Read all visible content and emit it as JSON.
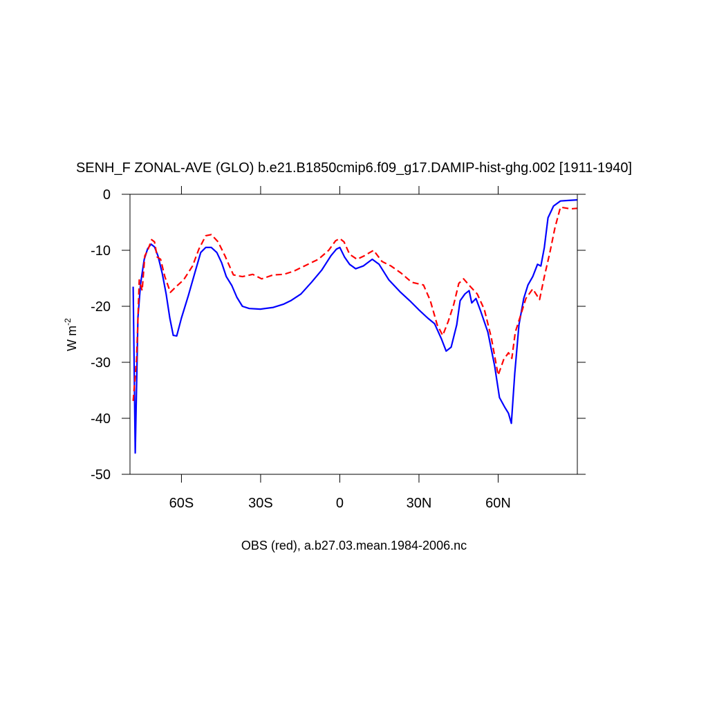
{
  "chart_data": {
    "type": "line",
    "title": "SENH_F ZONAL-AVE (GLO) b.e21.B1850cmip6.f09_g17.DAMIP-hist-ghg.002 [1911-1940]",
    "x_label": "OBS (red), a.b27.03.mean.1984-2006.nc",
    "y_label": {
      "base": "W m",
      "sup": "-2"
    },
    "xlim": [
      -79.5,
      90
    ],
    "ylim": [
      -50,
      0
    ],
    "xticks": [
      {
        "value": -60,
        "label": "60S"
      },
      {
        "value": -30,
        "label": "30S"
      },
      0,
      {
        "value": 30,
        "label": "30N"
      },
      {
        "value": 60,
        "label": "60N"
      }
    ],
    "yticks": [
      0,
      -10,
      -20,
      -30,
      -40,
      -50
    ],
    "series": [
      {
        "color": "#0000ff",
        "style": "solid",
        "x": [
          -78.3,
          -77.5,
          -76.5,
          -75.5,
          -74.1,
          -72.8,
          -71.5,
          -70.2,
          -68.9,
          -67.3,
          -65.8,
          -64.4,
          -63.1,
          -61.8,
          -60,
          -57.4,
          -54.8,
          -52.7,
          -50.8,
          -48.7,
          -46.6,
          -44.8,
          -43,
          -40.9,
          -39,
          -36.9,
          -34.3,
          -30.1,
          -25.2,
          -21.2,
          -18.6,
          -14.7,
          -10.7,
          -6.8,
          -3.4,
          -1.3,
          0,
          1.8,
          3.7,
          6,
          8.9,
          12.3,
          14.9,
          18.6,
          22.8,
          26.5,
          29.9,
          33.3,
          35.9,
          38.5,
          40.3,
          42.2,
          44.3,
          45.6,
          47.4,
          49,
          50,
          51.6,
          53.4,
          56.1,
          58.7,
          60.5,
          62.6,
          63.9,
          65,
          66.3,
          67.9,
          69.7,
          71.3,
          73.1,
          74.9,
          76.2,
          77.5,
          78.9,
          81,
          83.6,
          86.7,
          89.9
        ],
        "values": [
          -16.5,
          -46.2,
          -22,
          -16,
          -11.6,
          -9.7,
          -8.9,
          -9.4,
          -11,
          -14.1,
          -17.8,
          -22.1,
          -25.2,
          -25.3,
          -22.1,
          -18.1,
          -13.8,
          -10.4,
          -9.5,
          -9.5,
          -10.4,
          -12.2,
          -14.7,
          -16.3,
          -18.4,
          -20,
          -20.4,
          -20.5,
          -20.2,
          -19.6,
          -19,
          -17.8,
          -15.7,
          -13.5,
          -11,
          -9.8,
          -9.5,
          -11.2,
          -12.5,
          -13.3,
          -12.8,
          -11.6,
          -12.5,
          -15.3,
          -17.4,
          -19,
          -20.6,
          -22.1,
          -23.1,
          -25.8,
          -28,
          -27.3,
          -23.3,
          -19,
          -17.8,
          -17.2,
          -19.4,
          -18.6,
          -20.9,
          -24.6,
          -30.7,
          -36.3,
          -38.1,
          -39.1,
          -40.9,
          -32,
          -23.3,
          -18.6,
          -16.2,
          -14.7,
          -12.5,
          -12.8,
          -9.5,
          -4.2,
          -2.1,
          -1.2,
          -1.1,
          -1.0
        ]
      },
      {
        "color": "#ff0000",
        "style": "dashed",
        "x": [
          -78.3,
          -77,
          -76,
          -74.9,
          -73.9,
          -72.6,
          -71.3,
          -70.2,
          -69.2,
          -67.9,
          -66.3,
          -64.2,
          -61.8,
          -59.2,
          -55.8,
          -53.4,
          -50.8,
          -48.7,
          -46.1,
          -43.5,
          -40.3,
          -36.9,
          -33,
          -29.6,
          -25.2,
          -21.2,
          -17.3,
          -13.4,
          -8.1,
          -4.2,
          -1.6,
          0,
          1.6,
          3.7,
          6.5,
          9.2,
          12.8,
          16,
          19.4,
          23.3,
          27.2,
          31.7,
          34.3,
          36.9,
          39,
          41.1,
          43.2,
          45.1,
          46.9,
          49.5,
          52.1,
          54.8,
          57.4,
          60,
          62.1,
          63.9,
          65.2,
          66.5,
          68.6,
          70.5,
          73.1,
          75.7,
          77.5,
          79.6,
          81.5,
          83.6,
          87.5,
          89.9
        ],
        "values": [
          -36.9,
          -29.5,
          -15.3,
          -17.2,
          -11,
          -9.8,
          -8.1,
          -8.5,
          -11.2,
          -11.6,
          -14.7,
          -17.5,
          -16.4,
          -15.3,
          -12.8,
          -9.8,
          -7.4,
          -7.2,
          -8.5,
          -11,
          -14.4,
          -14.7,
          -14.3,
          -15.1,
          -14.4,
          -14.3,
          -13.7,
          -12.8,
          -11.6,
          -10,
          -8.3,
          -7.9,
          -8.5,
          -10.7,
          -11.6,
          -11,
          -10,
          -12,
          -12.8,
          -14.1,
          -15.7,
          -16.2,
          -19,
          -23.3,
          -25.2,
          -22.7,
          -19.6,
          -15.9,
          -15.1,
          -16.5,
          -17.8,
          -20.6,
          -25.6,
          -32.3,
          -29.5,
          -28.3,
          -29.3,
          -24.6,
          -21.5,
          -18.6,
          -16.9,
          -18.8,
          -14.7,
          -10.4,
          -6,
          -2.3,
          -2.6,
          -2.5
        ]
      }
    ]
  }
}
